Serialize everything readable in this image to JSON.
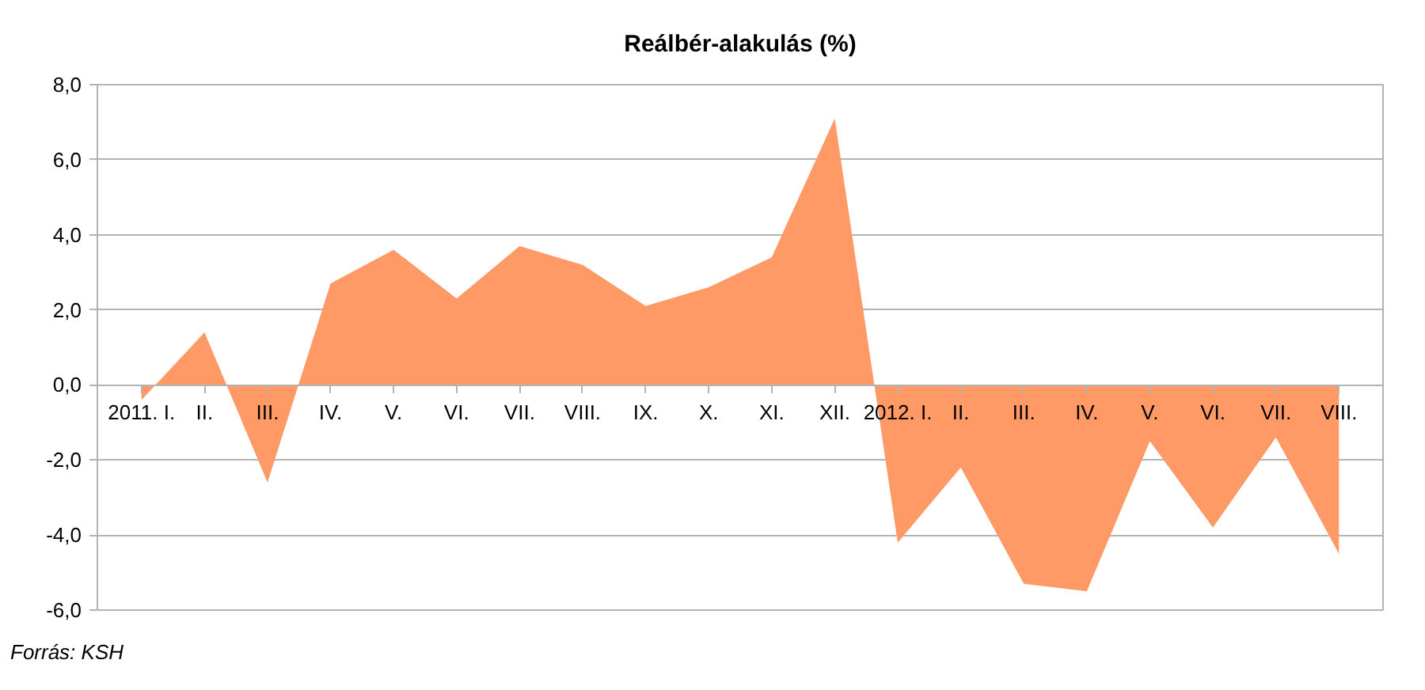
{
  "chart_data": {
    "type": "area",
    "title": "Reálbér-alakulás (%)",
    "categories": [
      "2011. I.",
      "II.",
      "III.",
      "IV.",
      "V.",
      "VI.",
      "VII.",
      "VIII.",
      "IX.",
      "X.",
      "XI.",
      "XII.",
      "2012. I.",
      "II.",
      "III.",
      "IV.",
      "V.",
      "VI.",
      "VII.",
      "VIII."
    ],
    "series": [
      {
        "color": "#ff9966",
        "values": [
          -0.4,
          1.4,
          -2.6,
          2.7,
          3.6,
          2.3,
          3.7,
          3.2,
          2.1,
          2.6,
          3.4,
          7.1,
          -4.2,
          -2.2,
          -5.3,
          -5.5,
          -1.5,
          -3.8,
          -1.4,
          -4.5
        ]
      }
    ],
    "ylim": [
      -6,
      8
    ],
    "yticks": [
      {
        "value": -6,
        "label": "-6,0"
      },
      {
        "value": -4,
        "label": "-4,0"
      },
      {
        "value": -2,
        "label": "-2,0"
      },
      {
        "value": 0,
        "label": "0,0"
      },
      {
        "value": 2,
        "label": "2,0"
      },
      {
        "value": 4,
        "label": "4,0"
      },
      {
        "value": 6,
        "label": "6,0"
      },
      {
        "value": 8,
        "label": "8,0"
      }
    ],
    "grid": "y",
    "annotations": [
      "Forrás: KSH"
    ]
  }
}
